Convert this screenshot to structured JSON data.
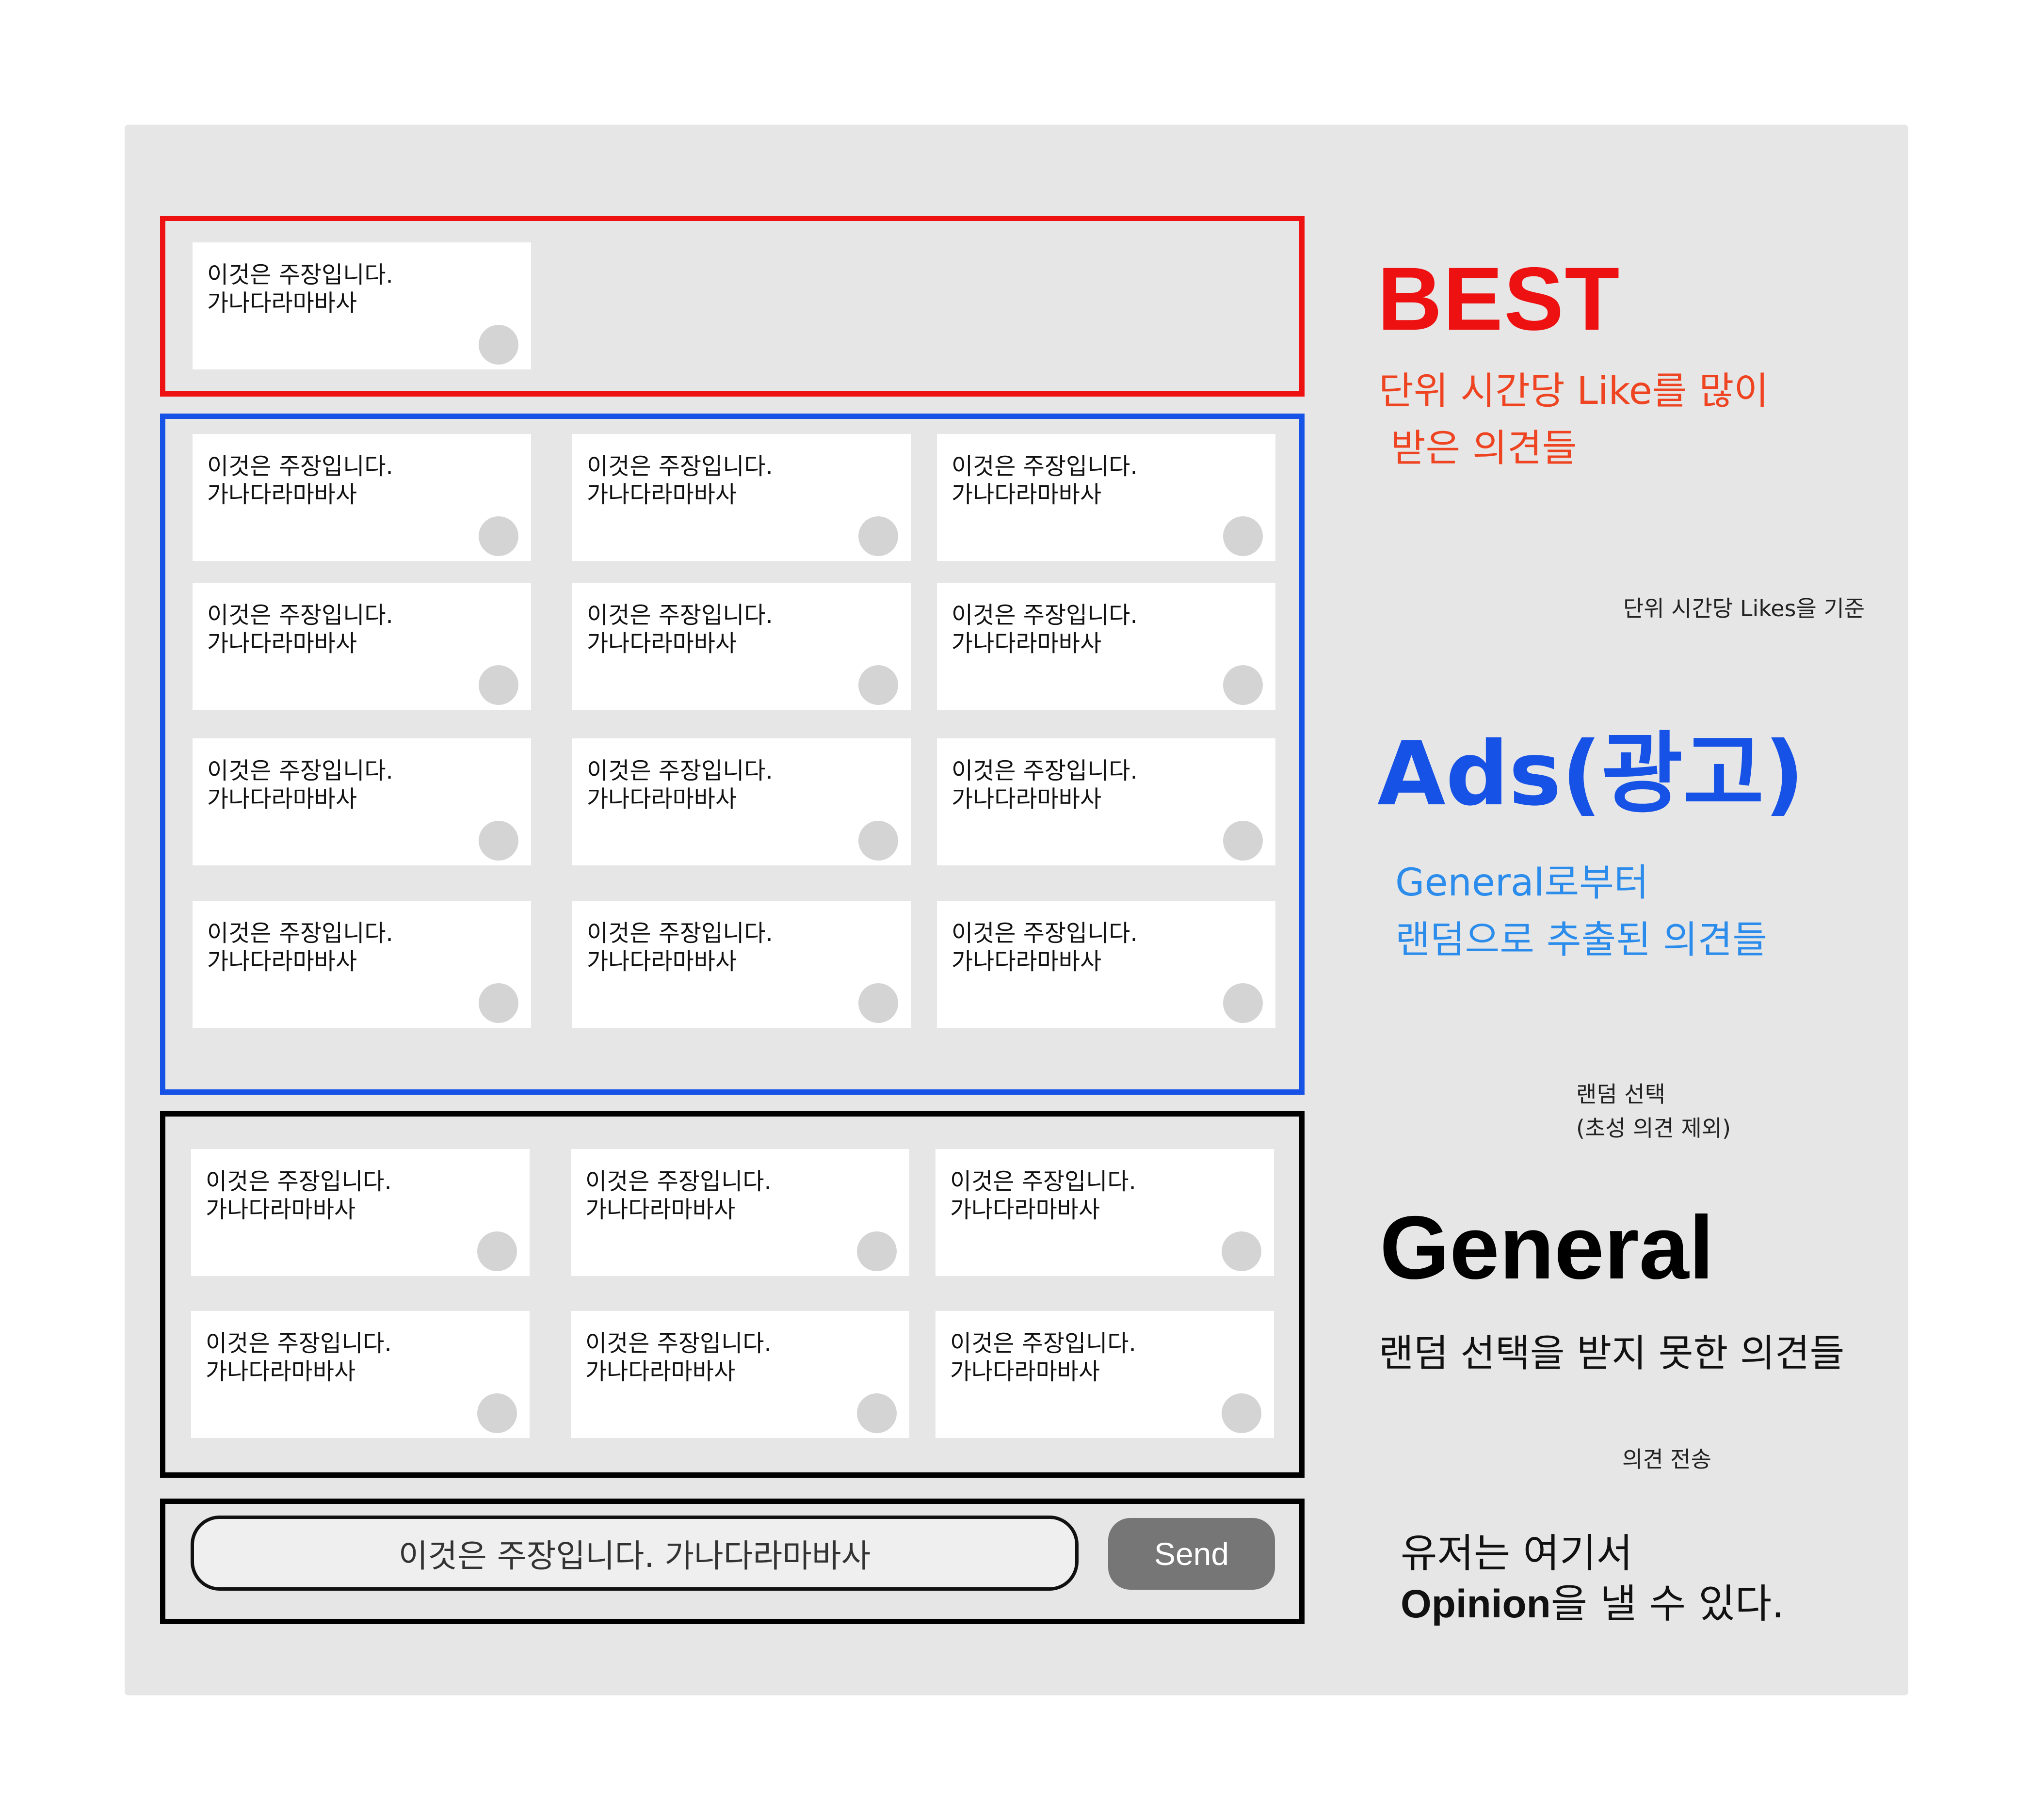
{
  "card": {
    "line1": "이것은 주장입니다.",
    "line2": "가나다라마바사"
  },
  "best": {
    "title": "BEST",
    "desc_line1": "단위 시간당 Like를 많이",
    "desc_line2": " 받은 의견들",
    "note": "단위 시간당 Likes을 기준"
  },
  "ads": {
    "title": "Ads(광고)",
    "desc_line1": "General로부터",
    "desc_line2": "랜덤으로 추출된 의견들",
    "note_line1": "랜덤 선택",
    "note_line2": "(초성 의견 제외)"
  },
  "general": {
    "title": "General",
    "desc": "랜덤 선택을 받지 못한 의견들",
    "note": "의견 전송"
  },
  "input": {
    "value": "이것은 주장입니다. 가나다라마바사",
    "send_label": "Send"
  },
  "user": {
    "line1": "유저는 여기서",
    "line2_bold": "Opinion",
    "line2_rest": "을 낼 수 있다."
  },
  "colors": {
    "best": "#ee1111",
    "ads": "#1652e6",
    "general": "#000000"
  }
}
